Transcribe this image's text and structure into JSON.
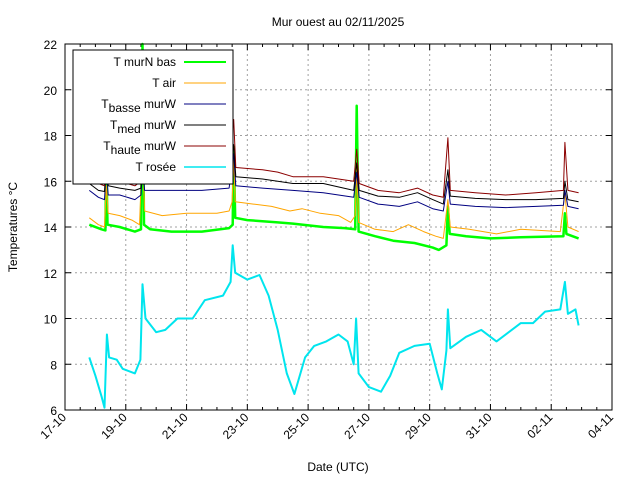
{
  "chart_data": {
    "type": "line",
    "title": "Mur ouest au 02/11/2025",
    "xlabel": "Date (UTC)",
    "ylabel": "Temperatures °C",
    "x_units": "days since 17-10 00:00",
    "xlim": [
      0,
      18
    ],
    "ylim": [
      6,
      22
    ],
    "grid": true,
    "legend_position": "top-left",
    "x_ticks": [
      {
        "v": 0,
        "label": "17-10"
      },
      {
        "v": 2,
        "label": "19-10"
      },
      {
        "v": 4,
        "label": "21-10"
      },
      {
        "v": 6,
        "label": "23-10"
      },
      {
        "v": 8,
        "label": "25-10"
      },
      {
        "v": 10,
        "label": "27-10"
      },
      {
        "v": 12,
        "label": "29-10"
      },
      {
        "v": 14,
        "label": "31-10"
      },
      {
        "v": 16,
        "label": "02-11"
      },
      {
        "v": 18,
        "label": "04-11"
      }
    ],
    "y_ticks": [
      {
        "v": 6,
        "label": "6"
      },
      {
        "v": 8,
        "label": "8"
      },
      {
        "v": 10,
        "label": "10"
      },
      {
        "v": 12,
        "label": "12"
      },
      {
        "v": 14,
        "label": "14"
      },
      {
        "v": 16,
        "label": "16"
      },
      {
        "v": 18,
        "label": "18"
      },
      {
        "v": 20,
        "label": "20"
      },
      {
        "v": 22,
        "label": "22"
      }
    ],
    "series": [
      {
        "name": "T murN bas",
        "main": "T murN bas",
        "sub": "",
        "rest": "",
        "color": "#00ff00",
        "width": 2.5,
        "points": [
          [
            0.8,
            14.1
          ],
          [
            1.2,
            13.9
          ],
          [
            1.33,
            13.85
          ],
          [
            1.36,
            16.9
          ],
          [
            1.4,
            14.1
          ],
          [
            1.8,
            14.0
          ],
          [
            2.3,
            13.8
          ],
          [
            2.5,
            13.9
          ],
          [
            2.55,
            22
          ],
          [
            2.6,
            14.1
          ],
          [
            2.8,
            13.9
          ],
          [
            3.5,
            13.8
          ],
          [
            4.5,
            13.8
          ],
          [
            5.4,
            13.95
          ],
          [
            5.52,
            14.1
          ],
          [
            5.55,
            17.5
          ],
          [
            5.6,
            14.4
          ],
          [
            6.0,
            14.3
          ],
          [
            7.0,
            14.2
          ],
          [
            7.5,
            14.15
          ],
          [
            8.5,
            14.0
          ],
          [
            9.2,
            13.95
          ],
          [
            9.55,
            13.9
          ],
          [
            9.6,
            19.3
          ],
          [
            9.66,
            13.8
          ],
          [
            10.2,
            13.6
          ],
          [
            10.8,
            13.4
          ],
          [
            11.5,
            13.3
          ],
          [
            12.1,
            13.1
          ],
          [
            12.3,
            13.0
          ],
          [
            12.55,
            13.2
          ],
          [
            12.6,
            14.9
          ],
          [
            12.66,
            13.7
          ],
          [
            13.2,
            13.6
          ],
          [
            14.0,
            13.5
          ],
          [
            15.0,
            13.55
          ],
          [
            16.4,
            13.6
          ],
          [
            16.45,
            14.6
          ],
          [
            16.5,
            13.7
          ],
          [
            16.9,
            13.5
          ]
        ]
      },
      {
        "name": "T air",
        "main": "T air",
        "sub": "",
        "rest": "",
        "color": "#ffa500",
        "width": 1,
        "points": [
          [
            0.8,
            14.4
          ],
          [
            1.1,
            14.1
          ],
          [
            1.3,
            14.0
          ],
          [
            1.36,
            15.8
          ],
          [
            1.42,
            14.6
          ],
          [
            1.8,
            14.5
          ],
          [
            2.2,
            14.3
          ],
          [
            2.45,
            14.1
          ],
          [
            2.55,
            17.5
          ],
          [
            2.62,
            14.7
          ],
          [
            3.2,
            14.5
          ],
          [
            4.0,
            14.6
          ],
          [
            5.0,
            14.6
          ],
          [
            5.4,
            14.7
          ],
          [
            5.5,
            15.1
          ],
          [
            5.55,
            17.0
          ],
          [
            5.6,
            15.1
          ],
          [
            6.2,
            15.0
          ],
          [
            6.8,
            14.9
          ],
          [
            7.4,
            14.7
          ],
          [
            7.8,
            14.8
          ],
          [
            8.4,
            14.6
          ],
          [
            9.0,
            14.5
          ],
          [
            9.4,
            14.2
          ],
          [
            9.55,
            14.5
          ],
          [
            9.6,
            16.6
          ],
          [
            9.66,
            14.2
          ],
          [
            10.2,
            13.9
          ],
          [
            10.8,
            13.8
          ],
          [
            11.3,
            14.1
          ],
          [
            11.8,
            13.8
          ],
          [
            12.2,
            13.6
          ],
          [
            12.45,
            13.5
          ],
          [
            12.6,
            15.2
          ],
          [
            12.68,
            14.0
          ],
          [
            13.3,
            13.9
          ],
          [
            14.2,
            13.7
          ],
          [
            15.0,
            13.9
          ],
          [
            16.3,
            13.8
          ],
          [
            16.45,
            15.5
          ],
          [
            16.55,
            14.0
          ],
          [
            16.9,
            13.8
          ]
        ]
      },
      {
        "name": "Tbasse murW",
        "main": "T",
        "sub": "basse",
        "rest": " murW",
        "color": "#000080",
        "width": 1,
        "points": [
          [
            0.8,
            15.6
          ],
          [
            1.1,
            15.3
          ],
          [
            1.3,
            15.2
          ],
          [
            1.36,
            16.6
          ],
          [
            1.42,
            15.4
          ],
          [
            1.8,
            15.4
          ],
          [
            2.3,
            15.2
          ],
          [
            2.5,
            15.4
          ],
          [
            2.55,
            16.6
          ],
          [
            2.62,
            15.6
          ],
          [
            3.5,
            15.6
          ],
          [
            4.5,
            15.6
          ],
          [
            5.4,
            15.7
          ],
          [
            5.55,
            17.2
          ],
          [
            5.62,
            15.8
          ],
          [
            6.5,
            15.7
          ],
          [
            7.5,
            15.6
          ],
          [
            8.5,
            15.5
          ],
          [
            9.5,
            15.3
          ],
          [
            9.6,
            16.4
          ],
          [
            9.68,
            15.3
          ],
          [
            10.3,
            15.0
          ],
          [
            11.0,
            14.9
          ],
          [
            11.6,
            15.1
          ],
          [
            12.1,
            14.8
          ],
          [
            12.45,
            14.7
          ],
          [
            12.6,
            16.0
          ],
          [
            12.68,
            15.0
          ],
          [
            13.5,
            14.9
          ],
          [
            14.5,
            14.85
          ],
          [
            15.5,
            14.9
          ],
          [
            16.4,
            14.95
          ],
          [
            16.45,
            15.6
          ],
          [
            16.55,
            14.9
          ],
          [
            16.9,
            14.8
          ]
        ]
      },
      {
        "name": "Tmed murW",
        "main": "T",
        "sub": "med",
        "rest": " murW",
        "color": "#000000",
        "width": 1,
        "points": [
          [
            0.8,
            15.9
          ],
          [
            1.1,
            15.6
          ],
          [
            1.3,
            15.55
          ],
          [
            1.36,
            16.9
          ],
          [
            1.42,
            15.8
          ],
          [
            1.8,
            15.7
          ],
          [
            2.3,
            15.6
          ],
          [
            2.5,
            15.7
          ],
          [
            2.55,
            17.0
          ],
          [
            2.62,
            15.9
          ],
          [
            3.5,
            15.9
          ],
          [
            4.5,
            15.9
          ],
          [
            5.4,
            16.0
          ],
          [
            5.55,
            17.6
          ],
          [
            5.62,
            16.2
          ],
          [
            6.5,
            16.1
          ],
          [
            7.5,
            15.9
          ],
          [
            8.5,
            15.9
          ],
          [
            9.5,
            15.6
          ],
          [
            9.6,
            16.8
          ],
          [
            9.68,
            15.6
          ],
          [
            10.3,
            15.35
          ],
          [
            11.0,
            15.3
          ],
          [
            11.6,
            15.5
          ],
          [
            12.1,
            15.2
          ],
          [
            12.45,
            15.0
          ],
          [
            12.6,
            16.5
          ],
          [
            12.68,
            15.35
          ],
          [
            13.5,
            15.25
          ],
          [
            14.5,
            15.2
          ],
          [
            15.5,
            15.2
          ],
          [
            16.4,
            15.25
          ],
          [
            16.45,
            16.0
          ],
          [
            16.55,
            15.2
          ],
          [
            16.9,
            15.1
          ]
        ]
      },
      {
        "name": "Thaute murW",
        "main": "T",
        "sub": "haute",
        "rest": " murW",
        "color": "#8b0000",
        "width": 1,
        "points": [
          [
            0.8,
            16.1
          ],
          [
            1.1,
            15.9
          ],
          [
            1.3,
            15.8
          ],
          [
            1.36,
            17.1
          ],
          [
            1.42,
            16.1
          ],
          [
            1.8,
            16.0
          ],
          [
            2.3,
            15.8
          ],
          [
            2.5,
            16.0
          ],
          [
            2.55,
            17.3
          ],
          [
            2.62,
            16.1
          ],
          [
            3.5,
            16.0
          ],
          [
            4.5,
            16.0
          ],
          [
            5.4,
            16.3
          ],
          [
            5.55,
            18.7
          ],
          [
            5.62,
            16.6
          ],
          [
            6.5,
            16.5
          ],
          [
            7.0,
            16.4
          ],
          [
            7.5,
            16.2
          ],
          [
            8.5,
            16.2
          ],
          [
            9.5,
            16.0
          ],
          [
            9.6,
            17.4
          ],
          [
            9.68,
            15.9
          ],
          [
            10.3,
            15.6
          ],
          [
            11.0,
            15.5
          ],
          [
            11.6,
            15.7
          ],
          [
            12.1,
            15.4
          ],
          [
            12.45,
            15.3
          ],
          [
            12.6,
            17.9
          ],
          [
            12.68,
            15.6
          ],
          [
            13.5,
            15.5
          ],
          [
            14.5,
            15.4
          ],
          [
            15.5,
            15.5
          ],
          [
            16.4,
            15.6
          ],
          [
            16.45,
            17.7
          ],
          [
            16.55,
            15.6
          ],
          [
            16.9,
            15.5
          ]
        ]
      },
      {
        "name": "T rosée",
        "main": "T rosée",
        "sub": "",
        "rest": "",
        "color": "#00e5ee",
        "width": 2,
        "points": [
          [
            0.8,
            8.3
          ],
          [
            1.0,
            7.5
          ],
          [
            1.2,
            6.6
          ],
          [
            1.3,
            6.1
          ],
          [
            1.38,
            9.3
          ],
          [
            1.45,
            8.3
          ],
          [
            1.7,
            8.2
          ],
          [
            1.9,
            7.8
          ],
          [
            2.3,
            7.6
          ],
          [
            2.48,
            8.2
          ],
          [
            2.55,
            11.5
          ],
          [
            2.65,
            10.0
          ],
          [
            3.0,
            9.4
          ],
          [
            3.3,
            9.5
          ],
          [
            3.7,
            10.0
          ],
          [
            4.2,
            10.0
          ],
          [
            4.6,
            10.8
          ],
          [
            5.2,
            11.0
          ],
          [
            5.45,
            11.6
          ],
          [
            5.52,
            13.2
          ],
          [
            5.6,
            12.0
          ],
          [
            6.0,
            11.7
          ],
          [
            6.4,
            11.9
          ],
          [
            6.7,
            11.0
          ],
          [
            7.0,
            9.5
          ],
          [
            7.3,
            7.6
          ],
          [
            7.55,
            6.7
          ],
          [
            7.9,
            8.3
          ],
          [
            8.2,
            8.8
          ],
          [
            8.6,
            9.0
          ],
          [
            9.0,
            9.3
          ],
          [
            9.3,
            9.0
          ],
          [
            9.5,
            8.0
          ],
          [
            9.58,
            10.0
          ],
          [
            9.66,
            7.6
          ],
          [
            10.0,
            7.0
          ],
          [
            10.4,
            6.8
          ],
          [
            10.7,
            7.5
          ],
          [
            11.0,
            8.5
          ],
          [
            11.5,
            8.8
          ],
          [
            12.0,
            8.9
          ],
          [
            12.25,
            7.6
          ],
          [
            12.4,
            6.9
          ],
          [
            12.55,
            8.6
          ],
          [
            12.6,
            10.4
          ],
          [
            12.68,
            8.7
          ],
          [
            13.2,
            9.2
          ],
          [
            13.7,
            9.5
          ],
          [
            14.2,
            9.0
          ],
          [
            15.0,
            9.8
          ],
          [
            15.4,
            9.8
          ],
          [
            15.8,
            10.3
          ],
          [
            16.3,
            10.4
          ],
          [
            16.45,
            11.6
          ],
          [
            16.55,
            10.2
          ],
          [
            16.8,
            10.4
          ],
          [
            16.9,
            9.7
          ]
        ]
      }
    ]
  }
}
